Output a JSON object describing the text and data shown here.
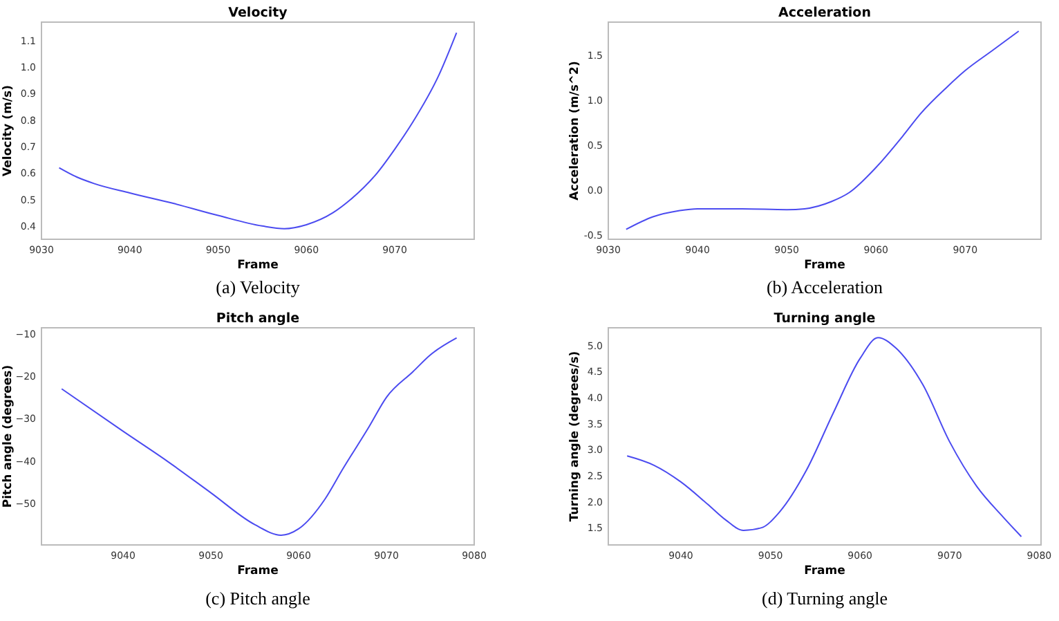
{
  "chart_data": [
    {
      "type": "line",
      "title": "Velocity",
      "xlabel": "Frame",
      "ylabel": "Velocity (m/s)",
      "annotations": [
        "(a) Velocity"
      ],
      "xlim": [
        9030,
        9079
      ],
      "xticks": [
        9030,
        9040,
        9050,
        9060,
        9070
      ],
      "ylim": [
        0.35,
        1.17
      ],
      "yticks": [
        0.4,
        0.5,
        0.6,
        0.7,
        0.8,
        0.9,
        {
          "value": 1,
          "label": "1.0"
        },
        1.1
      ],
      "grid": false,
      "series": [
        {
          "color": "#4b4bf0",
          "x": [
            9032,
            9034,
            9036,
            9040,
            9045,
            9050,
            9055,
            9057.5,
            9060,
            9063,
            9065,
            9068,
            9070,
            9072,
            9075,
            9077
          ],
          "values": [
            0.62,
            0.585,
            0.56,
            0.525,
            0.485,
            0.44,
            0.4,
            0.39,
            0.405,
            0.45,
            0.5,
            0.6,
            0.69,
            0.79,
            0.97,
            1.13
          ]
        }
      ]
    },
    {
      "type": "line",
      "title": "Acceleration",
      "xlabel": "Frame",
      "ylabel": "Acceleration (m/s^2)",
      "annotations": [
        "(b) Acceleration"
      ],
      "xlim": [
        9030,
        9078.5
      ],
      "xticks": [
        9030,
        9040,
        9050,
        9060,
        9070
      ],
      "ylim": [
        -0.55,
        1.87
      ],
      "yticks": [
        -0.5,
        {
          "value": 0,
          "label": "0.0"
        },
        0.5,
        {
          "value": 1,
          "label": "1.0"
        },
        1.5
      ],
      "grid": false,
      "series": [
        {
          "color": "#4b4bf0",
          "x": [
            9032,
            9035,
            9038,
            9040,
            9045,
            9050,
            9052,
            9055,
            9057,
            9060,
            9063,
            9065,
            9068,
            9070,
            9073,
            9076
          ],
          "values": [
            -0.44,
            -0.3,
            -0.23,
            -0.21,
            -0.21,
            -0.22,
            -0.21,
            -0.13,
            -0.03,
            0.25,
            0.6,
            0.85,
            1.15,
            1.33,
            1.55,
            1.77
          ]
        }
      ]
    },
    {
      "type": "line",
      "title": "Pitch angle",
      "xlabel": "Frame",
      "ylabel": "Pitch angle (degrees)",
      "annotations": [
        "(c) Pitch angle"
      ],
      "xlim": [
        9030.7,
        9080
      ],
      "xticks": [
        9040,
        9050,
        9060,
        9070,
        9080
      ],
      "ylim": [
        -59.8,
        -8.6
      ],
      "yticks": [
        {
          "value": -50,
          "label": "−50"
        },
        {
          "value": -40,
          "label": "−40"
        },
        {
          "value": -30,
          "label": "−30"
        },
        {
          "value": -20,
          "label": "−20"
        },
        {
          "value": -10,
          "label": "−10"
        }
      ],
      "grid": false,
      "series": [
        {
          "color": "#4b4bf0",
          "x": [
            9033,
            9040,
            9045,
            9050,
            9055,
            9058,
            9060,
            9063,
            9065,
            9068,
            9070,
            9073,
            9075,
            9078
          ],
          "values": [
            -23,
            -33,
            -40,
            -47.5,
            -55,
            -57.5,
            -56,
            -49,
            -42,
            -32,
            -25,
            -19,
            -15,
            -11
          ]
        }
      ]
    },
    {
      "type": "line",
      "title": "Turning angle",
      "xlabel": "Frame",
      "ylabel": "Turning angle (degrees/s)",
      "annotations": [
        "(d) Turning angle"
      ],
      "xlim": [
        9031.9,
        9080.2
      ],
      "xticks": [
        9040,
        9050,
        9060,
        9070,
        9080
      ],
      "ylim": [
        1.17,
        5.34
      ],
      "yticks": [
        1.5,
        {
          "value": 2,
          "label": "2.0"
        },
        2.5,
        {
          "value": 3,
          "label": "3.0"
        },
        3.5,
        {
          "value": 4,
          "label": "4.0"
        },
        4.5,
        {
          "value": 5,
          "label": "5.0"
        }
      ],
      "grid": false,
      "series": [
        {
          "color": "#4b4bf0",
          "x": [
            9034,
            9037,
            9040,
            9043,
            9045,
            9047,
            9049,
            9051,
            9054,
            9057,
            9060,
            9062,
            9064,
            9067,
            9070,
            9073,
            9076,
            9078
          ],
          "values": [
            2.88,
            2.7,
            2.38,
            1.95,
            1.65,
            1.45,
            1.5,
            1.8,
            2.6,
            3.7,
            4.75,
            5.15,
            4.95,
            4.25,
            3.15,
            2.3,
            1.7,
            1.33
          ]
        }
      ]
    }
  ]
}
